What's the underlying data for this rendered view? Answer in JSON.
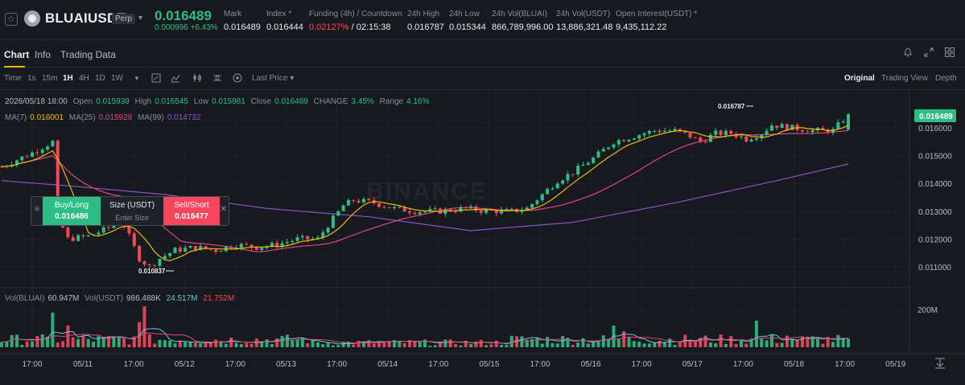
{
  "header": {
    "symbol": "BLUAIUSDT",
    "perp_badge": "Perp",
    "last_price": "0.016489",
    "change_abs": "0.000996",
    "change_pct": "+6.43%",
    "stats": [
      {
        "label": "Mark",
        "value": "0.016489"
      },
      {
        "label": "Index",
        "value": "0.016444"
      },
      {
        "label": "Funding (4h) / Countdown",
        "value_red": "0.02127%",
        "value": " / 02:15:38"
      },
      {
        "label": "24h High",
        "value": "0.016787"
      },
      {
        "label": "24h Low",
        "value": "0.015344"
      },
      {
        "label": "24h Vol(BLUAI)",
        "value": "866,789,996.00"
      },
      {
        "label": "24h Vol(USDT)",
        "value": "13,886,321.48"
      },
      {
        "label": "Open Interest(USDT)",
        "value": "9,435,112.22"
      }
    ],
    "index_marker": "*",
    "oi_marker": "*"
  },
  "tabs": [
    {
      "label": "Chart",
      "active": true
    },
    {
      "label": "Info",
      "active": false
    },
    {
      "label": "Trading Data",
      "active": false
    }
  ],
  "toolbar": {
    "intervals": [
      "Time",
      "1s",
      "15m",
      "1H",
      "4H",
      "1D",
      "1W"
    ],
    "selected_interval": "1H",
    "price_type": "Last Price",
    "views": [
      "Original",
      "Trading View",
      "Depth"
    ],
    "selected_view": "Original"
  },
  "legend": {
    "ohlc": {
      "date": "2026/05/18 18:00",
      "open_label": "Open",
      "open": "0.015939",
      "high_label": "High",
      "high": "0.016545",
      "low_label": "Low",
      "low": "0.015881",
      "close_label": "Close",
      "close": "0.016489",
      "change_label": "CHANGE",
      "change": "3.45%",
      "range_label": "Range",
      "range": "4.16%"
    },
    "ma": [
      {
        "label": "MA(7)",
        "value": "0.016001",
        "color": "#f0b90b"
      },
      {
        "label": "MA(25)",
        "value": "0.015928",
        "color": "#e6447d"
      },
      {
        "label": "MA(99)",
        "value": "0.014732",
        "color": "#8c52c9"
      }
    ],
    "vol": {
      "vol_bluai_label": "Vol(BLUAI)",
      "vol_bluai": "60.947M",
      "vol_usdt_label": "Vol(USDT)",
      "vol_usdt": "986.488K",
      "buy": "24.517M",
      "sell": "21.752M"
    }
  },
  "order_widget": {
    "buy_label": "Buy/Long",
    "buy_price": "0.016486",
    "size_label": "Size (USDT)",
    "size_placeholder": "Enter Size",
    "sell_label": "Sell/Short",
    "sell_price": "0.016477"
  },
  "colors": {
    "up": "#2ebd85",
    "down": "#f6465d",
    "ma7": "#f0b90b",
    "ma25": "#e6447d",
    "ma99": "#8c52c9",
    "vol_ma": "#6ec6d6"
  },
  "watermark": "BINANCE",
  "chart_data": {
    "type": "candlestick",
    "interval": "1H",
    "price_axis": [
      "0.016000",
      "0.015000",
      "0.014000",
      "0.013000",
      "0.012000",
      "0.011000"
    ],
    "price_range": [
      0.0105,
      0.017
    ],
    "current_price_tag": "0.016489",
    "high_annotation": "0.016787",
    "low_annotation": "0.010837",
    "volume_axis_label": "200M",
    "x_labels": [
      "17:00",
      "05/11",
      "17:00",
      "05/12",
      "17:00",
      "05/13",
      "17:00",
      "05/14",
      "17:00",
      "05/15",
      "17:00",
      "05/16",
      "17:00",
      "05/17",
      "17:00",
      "05/18",
      "17:00",
      "05/19"
    ],
    "price_path": [
      [
        0,
        0.0146
      ],
      [
        6,
        0.0151
      ],
      [
        10,
        0.0155
      ],
      [
        11,
        0.0128
      ],
      [
        13,
        0.012
      ],
      [
        17,
        0.0121
      ],
      [
        21,
        0.0124
      ],
      [
        23,
        0.0129
      ],
      [
        25,
        0.0121
      ],
      [
        27,
        0.0113
      ],
      [
        29,
        0.011
      ],
      [
        31,
        0.0113
      ],
      [
        34,
        0.0116
      ],
      [
        38,
        0.0117
      ],
      [
        42,
        0.0116
      ],
      [
        46,
        0.0118
      ],
      [
        50,
        0.0117
      ],
      [
        54,
        0.0118
      ],
      [
        58,
        0.012
      ],
      [
        62,
        0.012
      ],
      [
        64,
        0.0125
      ],
      [
        67,
        0.0132
      ],
      [
        69,
        0.0134
      ],
      [
        73,
        0.0133
      ],
      [
        77,
        0.0131
      ],
      [
        81,
        0.013
      ],
      [
        86,
        0.013
      ],
      [
        91,
        0.0131
      ],
      [
        95,
        0.013
      ],
      [
        100,
        0.013
      ],
      [
        103,
        0.0131
      ],
      [
        106,
        0.0136
      ],
      [
        109,
        0.0141
      ],
      [
        112,
        0.0144
      ],
      [
        116,
        0.0149
      ],
      [
        120,
        0.0155
      ],
      [
        124,
        0.0157
      ],
      [
        128,
        0.0159
      ],
      [
        132,
        0.0159
      ],
      [
        135,
        0.0157
      ],
      [
        137,
        0.0155
      ],
      [
        140,
        0.0158
      ],
      [
        143,
        0.0158
      ],
      [
        146,
        0.0156
      ],
      [
        149,
        0.0158
      ],
      [
        151,
        0.0161
      ],
      [
        155,
        0.016
      ],
      [
        159,
        0.0159
      ],
      [
        163,
        0.0159
      ],
      [
        166,
        0.01649
      ]
    ],
    "ma99_path": [
      [
        0,
        0.0141
      ],
      [
        14,
        0.0139
      ],
      [
        32,
        0.0136
      ],
      [
        52,
        0.0131
      ],
      [
        72,
        0.0128
      ],
      [
        92,
        0.0123
      ],
      [
        112,
        0.0126
      ],
      [
        132,
        0.0133
      ],
      [
        152,
        0.0141
      ],
      [
        166,
        0.0147
      ]
    ],
    "volume_spikes": [
      [
        10,
        0.72
      ],
      [
        28,
        0.85
      ],
      [
        27,
        0.52
      ],
      [
        13,
        0.45
      ],
      [
        120,
        0.45
      ],
      [
        122,
        0.33
      ],
      [
        148,
        0.55
      ],
      [
        154,
        0.24
      ],
      [
        166,
        0.18
      ]
    ]
  }
}
